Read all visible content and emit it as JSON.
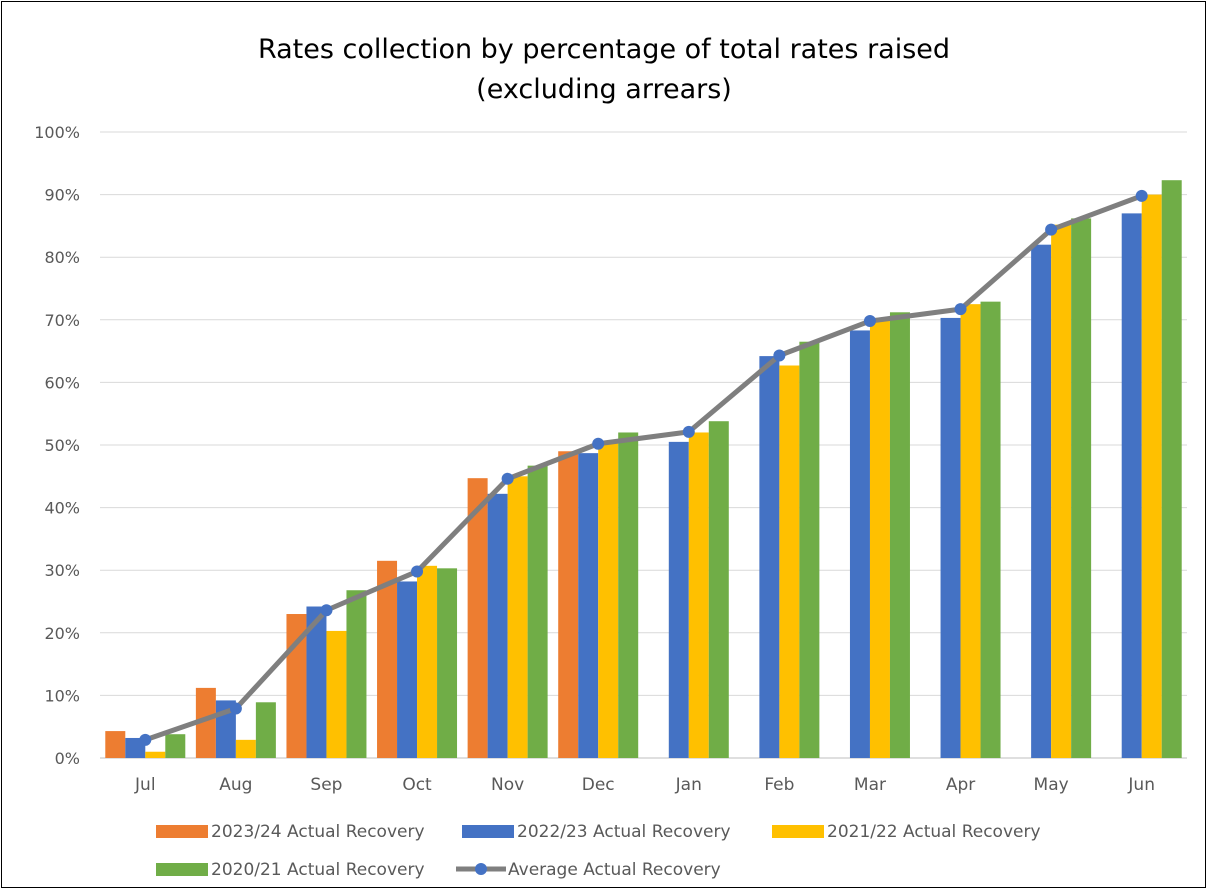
{
  "chart_data": {
    "type": "bar",
    "title": "Rates collection by percentage of total rates raised",
    "subtitle": "(excluding arrears)",
    "categories": [
      "Jul",
      "Aug",
      "Sep",
      "Oct",
      "Nov",
      "Dec",
      "Jan",
      "Feb",
      "Mar",
      "Apr",
      "May",
      "Jun"
    ],
    "ylim": [
      0,
      100
    ],
    "yticks": [
      0,
      10,
      20,
      30,
      40,
      50,
      60,
      70,
      80,
      90,
      100
    ],
    "ytick_labels": [
      "0%",
      "10%",
      "20%",
      "30%",
      "40%",
      "50%",
      "60%",
      "70%",
      "80%",
      "90%",
      "100%"
    ],
    "grid": true,
    "legend_position": "bottom",
    "series": [
      {
        "name": "2023/24 Actual Recovery",
        "type": "bar",
        "color": "#ED7D31",
        "values": [
          4.3,
          11.2,
          23.0,
          31.5,
          44.7,
          49.0,
          null,
          null,
          null,
          null,
          null,
          null
        ]
      },
      {
        "name": "2022/23 Actual Recovery",
        "type": "bar",
        "color": "#4472C4",
        "values": [
          3.2,
          9.2,
          24.2,
          28.2,
          42.2,
          48.7,
          50.5,
          64.2,
          68.3,
          70.3,
          82.0,
          87.0
        ]
      },
      {
        "name": "2021/22 Actual Recovery",
        "type": "bar",
        "color": "#FFC000",
        "values": [
          1.0,
          2.9,
          20.3,
          30.7,
          45.0,
          50.7,
          52.0,
          62.7,
          70.3,
          72.5,
          85.2,
          90.0
        ]
      },
      {
        "name": "2020/21 Actual Recovery",
        "type": "bar",
        "color": "#70AD47",
        "values": [
          3.8,
          8.9,
          26.8,
          30.3,
          46.7,
          52.0,
          53.8,
          66.5,
          71.2,
          72.9,
          86.2,
          92.3
        ]
      },
      {
        "name": "Average Actual Recovery",
        "type": "line",
        "color": "#7F7F7F",
        "marker_color": "#4472C4",
        "values": [
          2.9,
          7.9,
          23.6,
          29.8,
          44.6,
          50.2,
          52.1,
          64.3,
          69.8,
          71.7,
          84.4,
          89.8
        ]
      }
    ]
  }
}
